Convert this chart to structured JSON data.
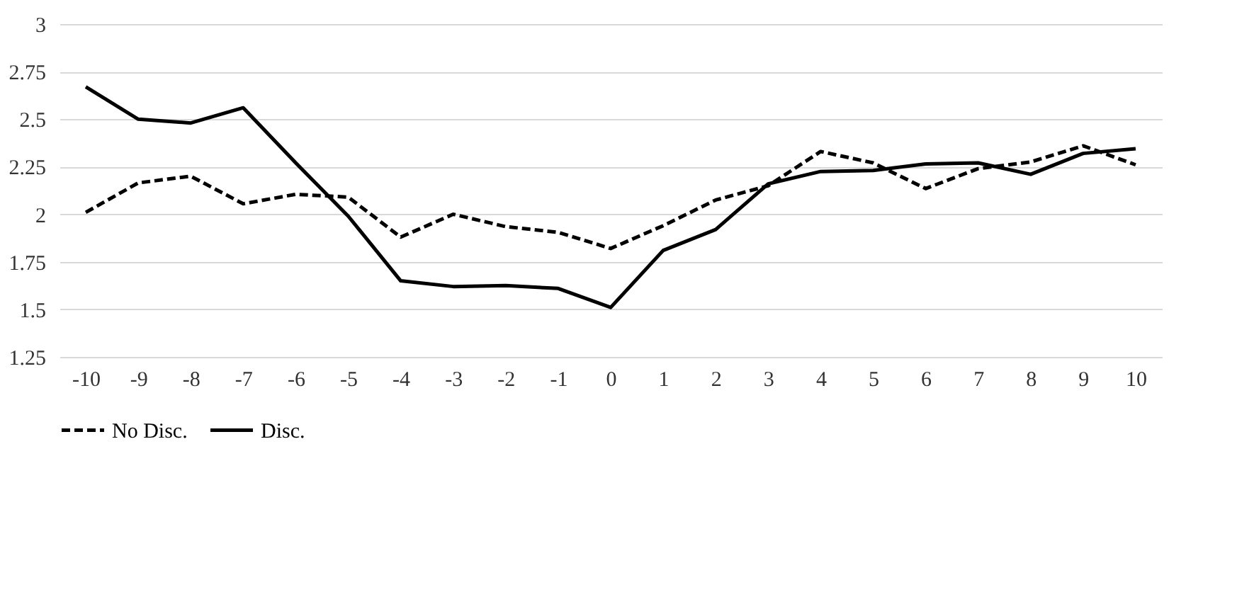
{
  "chart_data": {
    "type": "line",
    "categories": [
      "-10",
      "-9",
      "-8",
      "-7",
      "-6",
      "-5",
      "-4",
      "-3",
      "-2",
      "-1",
      "0",
      "1",
      "2",
      "3",
      "4",
      "5",
      "6",
      "7",
      "8",
      "9",
      "10"
    ],
    "series": [
      {
        "name": "No Disc.",
        "color": "#000000",
        "line_style": "dashed",
        "values": [
          2.01,
          2.165,
          2.2,
          2.055,
          2.105,
          2.09,
          1.88,
          2.0,
          1.935,
          1.905,
          1.82,
          1.94,
          2.075,
          2.15,
          2.33,
          2.27,
          2.135,
          2.24,
          2.275,
          2.36,
          2.26
        ]
      },
      {
        "name": "Disc.",
        "color": "#000000",
        "line_style": "solid",
        "values": [
          2.67,
          2.5,
          2.48,
          2.56,
          2.27,
          1.99,
          1.65,
          1.62,
          1.625,
          1.61,
          1.51,
          1.81,
          1.92,
          2.16,
          2.225,
          2.23,
          2.265,
          2.27,
          2.21,
          2.32,
          2.345
        ]
      }
    ],
    "ylim": [
      1.25,
      3
    ],
    "yticks": [
      1.25,
      1.5,
      1.75,
      2,
      2.25,
      2.5,
      2.75,
      3
    ],
    "grid": "y",
    "legend": "bottom",
    "marker": "none"
  }
}
